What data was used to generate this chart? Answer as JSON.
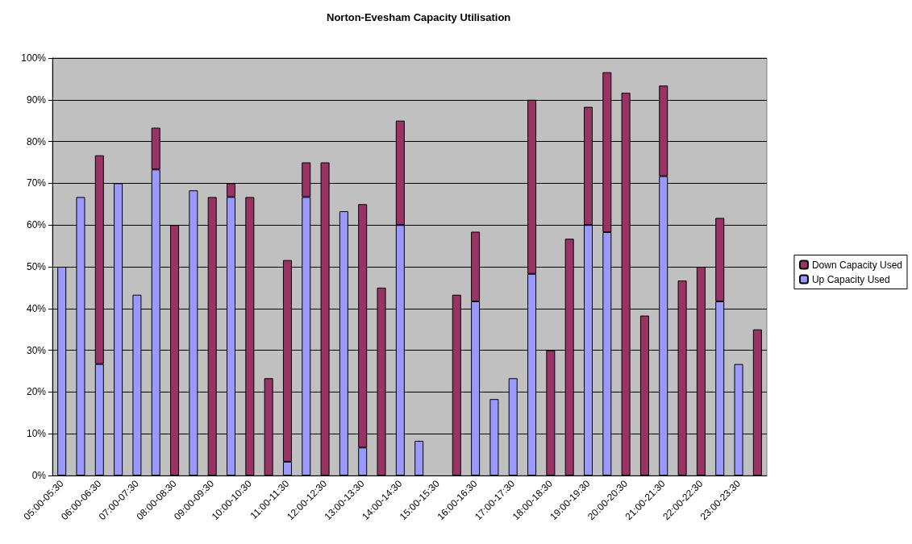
{
  "chart_data": {
    "type": "bar",
    "title": "Norton-Evesham Capacity Utilisation",
    "categories": [
      "05:00-05:30",
      null,
      "06:00-06:30",
      null,
      "07:00-07:30",
      null,
      "08:00-08:30",
      null,
      "09:00-09:30",
      null,
      "10:00-10:30",
      null,
      "11:00-11:30",
      null,
      "12:00-12:30",
      null,
      "13:00-13:30",
      null,
      "14:00-14:30",
      null,
      "15:00-15:30",
      null,
      "16:00-16:30",
      null,
      "17:00-17:30",
      null,
      "18:00-18:30",
      null,
      "19:00-19:30",
      null,
      "20:00-20:30",
      null,
      "21:00-21:30",
      null,
      "22:00-22:30",
      null,
      "23:00-23:30",
      null
    ],
    "series": [
      {
        "name": "Up Capacity Used",
        "color": "#9999ff",
        "values": [
          50,
          66.7,
          26.7,
          70,
          43.3,
          73.3,
          0,
          68.3,
          0,
          66.7,
          0,
          0,
          3.3,
          66.7,
          0,
          63.3,
          6.7,
          0,
          60,
          8.3,
          0,
          0,
          41.7,
          18.3,
          23.3,
          48.3,
          0,
          0,
          60,
          58.3,
          0,
          0,
          71.7,
          0,
          0,
          41.7,
          26.7,
          0
        ]
      },
      {
        "name": "Down Capacity Used",
        "color": "#993366",
        "values": [
          0,
          0,
          50,
          0,
          0,
          10,
          60,
          0,
          66.7,
          3.3,
          66.7,
          23.3,
          48.3,
          8.3,
          75,
          0,
          58.3,
          45,
          25,
          0,
          0,
          43.3,
          16.7,
          0,
          0,
          41.7,
          30,
          56.7,
          28.3,
          38.3,
          91.7,
          38.3,
          21.7,
          46.7,
          50,
          20,
          0,
          35
        ]
      }
    ],
    "stacked": true,
    "ylim": [
      0,
      100
    ],
    "yticks": [
      {
        "value": 0,
        "label": "0%"
      },
      {
        "value": 10,
        "label": "10%"
      },
      {
        "value": 20,
        "label": "20%"
      },
      {
        "value": 30,
        "label": "30%"
      },
      {
        "value": 40,
        "label": "40%"
      },
      {
        "value": 50,
        "label": "50%"
      },
      {
        "value": 60,
        "label": "60%"
      },
      {
        "value": 70,
        "label": "70%"
      },
      {
        "value": 80,
        "label": "80%"
      },
      {
        "value": 90,
        "label": "90%"
      },
      {
        "value": 100,
        "label": "100%"
      }
    ],
    "grid": "y",
    "legend": "right"
  }
}
